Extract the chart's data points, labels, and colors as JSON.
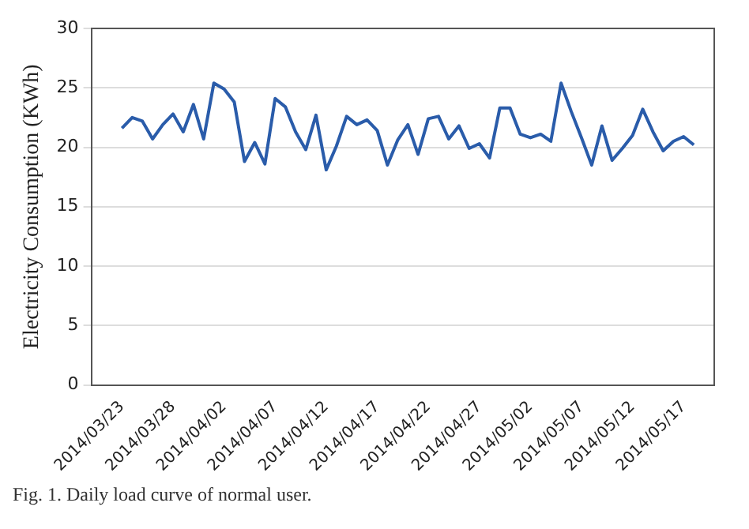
{
  "chart_data": {
    "type": "line",
    "ylabel": "Electricity Consumption (KWh)",
    "annotations": [
      "Fig. 1. Daily load curve of normal user."
    ],
    "x": [
      "2014-03-23",
      "2014-03-24",
      "2014-03-25",
      "2014-03-26",
      "2014-03-27",
      "2014-03-28",
      "2014-03-29",
      "2014-03-30",
      "2014-03-31",
      "2014-04-01",
      "2014-04-02",
      "2014-04-03",
      "2014-04-04",
      "2014-04-05",
      "2014-04-06",
      "2014-04-07",
      "2014-04-08",
      "2014-04-09",
      "2014-04-10",
      "2014-04-11",
      "2014-04-12",
      "2014-04-13",
      "2014-04-14",
      "2014-04-15",
      "2014-04-16",
      "2014-04-17",
      "2014-04-18",
      "2014-04-19",
      "2014-04-20",
      "2014-04-21",
      "2014-04-22",
      "2014-04-23",
      "2014-04-24",
      "2014-04-25",
      "2014-04-26",
      "2014-04-27",
      "2014-04-28",
      "2014-04-29",
      "2014-04-30",
      "2014-05-01",
      "2014-05-02",
      "2014-05-03",
      "2014-05-04",
      "2014-05-05",
      "2014-05-06",
      "2014-05-07",
      "2014-05-08",
      "2014-05-09",
      "2014-05-10",
      "2014-05-11",
      "2014-05-12",
      "2014-05-13",
      "2014-05-14",
      "2014-05-15",
      "2014-05-16",
      "2014-05-17",
      "2014-05-18"
    ],
    "series": [
      {
        "color": "#2a5caa",
        "values": [
          21.6,
          22.5,
          22.2,
          20.7,
          21.9,
          22.8,
          21.3,
          23.6,
          20.7,
          25.4,
          24.9,
          23.8,
          18.8,
          20.4,
          18.6,
          24.1,
          23.4,
          21.3,
          19.8,
          22.7,
          18.1,
          20.1,
          22.6,
          21.9,
          22.3,
          21.4,
          18.5,
          20.6,
          21.9,
          19.4,
          22.4,
          22.6,
          20.7,
          21.8,
          19.9,
          20.3,
          19.1,
          23.3,
          23.3,
          21.1,
          20.8,
          21.1,
          20.5,
          25.4,
          23.0,
          20.8,
          18.5,
          21.8,
          18.9,
          19.9,
          21.0,
          23.2,
          21.3,
          19.7,
          20.5,
          20.9,
          20.2
        ]
      }
    ],
    "xlim": [
      "2014-03-20",
      "2014-05-20"
    ],
    "xticks": [
      {
        "value": "2014-03-23",
        "label": "2014/03/23"
      },
      {
        "value": "2014-03-28",
        "label": "2014/03/28"
      },
      {
        "value": "2014-04-02",
        "label": "2014/04/02"
      },
      {
        "value": "2014-04-07",
        "label": "2014/04/07"
      },
      {
        "value": "2014-04-12",
        "label": "2014/04/12"
      },
      {
        "value": "2014-04-17",
        "label": "2014/04/17"
      },
      {
        "value": "2014-04-22",
        "label": "2014/04/22"
      },
      {
        "value": "2014-04-27",
        "label": "2014/04/27"
      },
      {
        "value": "2014-05-02",
        "label": "2014/05/02"
      },
      {
        "value": "2014-05-07",
        "label": "2014/05/07"
      },
      {
        "value": "2014-05-12",
        "label": "2014/05/12"
      },
      {
        "value": "2014-05-17",
        "label": "2014/05/17"
      }
    ],
    "ylim": [
      0,
      30
    ],
    "yticks": [
      0,
      5,
      10,
      15,
      20,
      25,
      30
    ],
    "grid": "y",
    "legend": false,
    "marker": "none",
    "line_style": "solid"
  }
}
